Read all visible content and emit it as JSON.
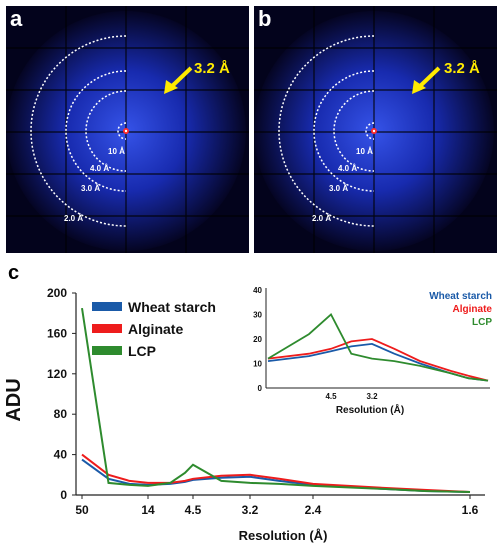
{
  "panels": [
    {
      "letter": "a",
      "callout": "3.2 Å",
      "rings": [
        "10 Å",
        "4.0 Å",
        "3.0 Å",
        "2.0 Å"
      ]
    },
    {
      "letter": "b",
      "callout": "3.2 Å",
      "rings": [
        "10 Å",
        "4.0 Å",
        "3.0 Å",
        "2.0 Å"
      ]
    }
  ],
  "panel_c_letter": "c",
  "colors": {
    "wheat": "#1a5aa8",
    "alginate": "#ee1c1c",
    "lcp": "#2e8b2e",
    "callout": "#ffea00",
    "detector": "#1a3cff"
  },
  "chart_data": {
    "type": "line",
    "xlabel": "Resolution (Å)",
    "ylabel": "ADU",
    "ylim": [
      0,
      200
    ],
    "yticks": [
      "0",
      "40",
      "80",
      "120",
      "160",
      "200"
    ],
    "xticks": [
      "50",
      "14",
      "4.5",
      "3.2",
      "2.4",
      "1.6"
    ],
    "series": [
      {
        "name": "Wheat starch",
        "color": "#1a5aa8",
        "x": [
          50,
          30,
          20,
          14,
          8,
          5.5,
          4.5,
          3.8,
          3.2,
          2.8,
          2.4,
          2.0,
          1.8,
          1.6
        ],
        "y": [
          35,
          16,
          11,
          10,
          11,
          13,
          15,
          17,
          18,
          14,
          10,
          6,
          4,
          3
        ]
      },
      {
        "name": "Alginate",
        "color": "#ee1c1c",
        "x": [
          50,
          30,
          20,
          14,
          8,
          5.5,
          4.5,
          3.8,
          3.2,
          2.8,
          2.4,
          2.0,
          1.8,
          1.6
        ],
        "y": [
          40,
          20,
          14,
          12,
          12,
          14,
          16,
          19,
          20,
          16,
          11,
          7,
          5,
          3
        ]
      },
      {
        "name": "LCP",
        "color": "#2e8b2e",
        "x": [
          50,
          30,
          20,
          14,
          8,
          5.5,
          4.5,
          3.8,
          3.2,
          2.8,
          2.4,
          2.0,
          1.8,
          1.6
        ],
        "y": [
          185,
          12,
          10,
          9,
          12,
          22,
          30,
          14,
          12,
          11,
          9,
          6,
          4,
          3
        ]
      }
    ],
    "inset": {
      "xlabel": "Resolution (Å)",
      "yticks": [
        "0",
        "10",
        "20",
        "30",
        "40"
      ],
      "xticks": [
        "4.5",
        "3.2"
      ],
      "ylim": [
        0,
        40
      ]
    }
  }
}
